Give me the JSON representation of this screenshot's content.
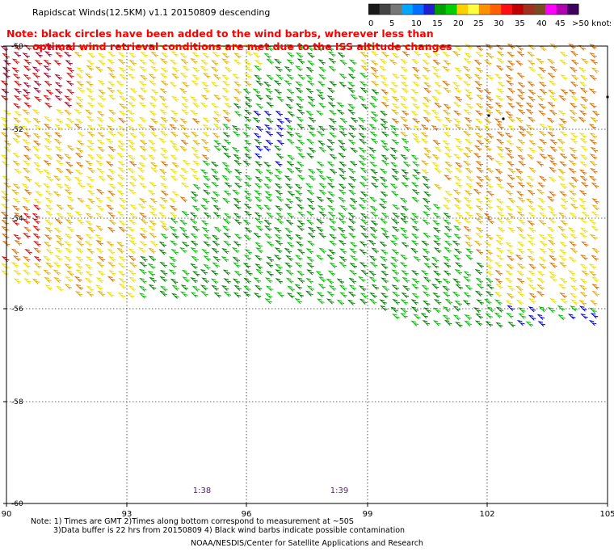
{
  "header": {
    "title": "Rapidscat Winds(12.5KM) v1.1 20150809 descending",
    "note_line1": "Note: black circles have been added to the wind barbs, wherever less than",
    "note_line2": "optimal wind retrieval conditions are met due to the ISS altitude changes"
  },
  "legend": {
    "labels": [
      "0",
      "5",
      "10",
      "15",
      "20",
      "25",
      "30",
      "35",
      "40",
      "45",
      ">50 knots"
    ],
    "colors": [
      "#1a1a1a",
      "#444444",
      "#777777",
      "#00a8ff",
      "#0070ff",
      "#2020d0",
      "#00a000",
      "#00d000",
      "#ffd000",
      "#ffff40",
      "#ff9000",
      "#ff6000",
      "#ff1010",
      "#c00000",
      "#a03020",
      "#7a4a20",
      "#ff00ff",
      "#b000b0",
      "#400060"
    ]
  },
  "map": {
    "lat_ticks": [
      "-50",
      "-52",
      "-54",
      "-56",
      "-58",
      "-60"
    ],
    "lon_ticks": [
      "90",
      "93",
      "96",
      "99",
      "102",
      "105"
    ],
    "pass_times": [
      "1:38",
      "1:39"
    ],
    "speed_colors": {
      "calm_blue": "#0000e0",
      "green_dark": "#008000",
      "green": "#00c000",
      "yellow": "#f0e000",
      "gold": "#e8b000",
      "orange": "#e07000",
      "red": "#e00000",
      "dark_red": "#a00030"
    }
  },
  "footer": {
    "line1": "Note: 1) Times are GMT 2)Times along bottom correspond to measurement at ~50S",
    "line2": "3)Data buffer is 22 hrs from 20150809 4) Black wind barbs indicate possible contamination",
    "line3": "NOAA/NESDIS/Center for Satellite Applications and Research"
  }
}
